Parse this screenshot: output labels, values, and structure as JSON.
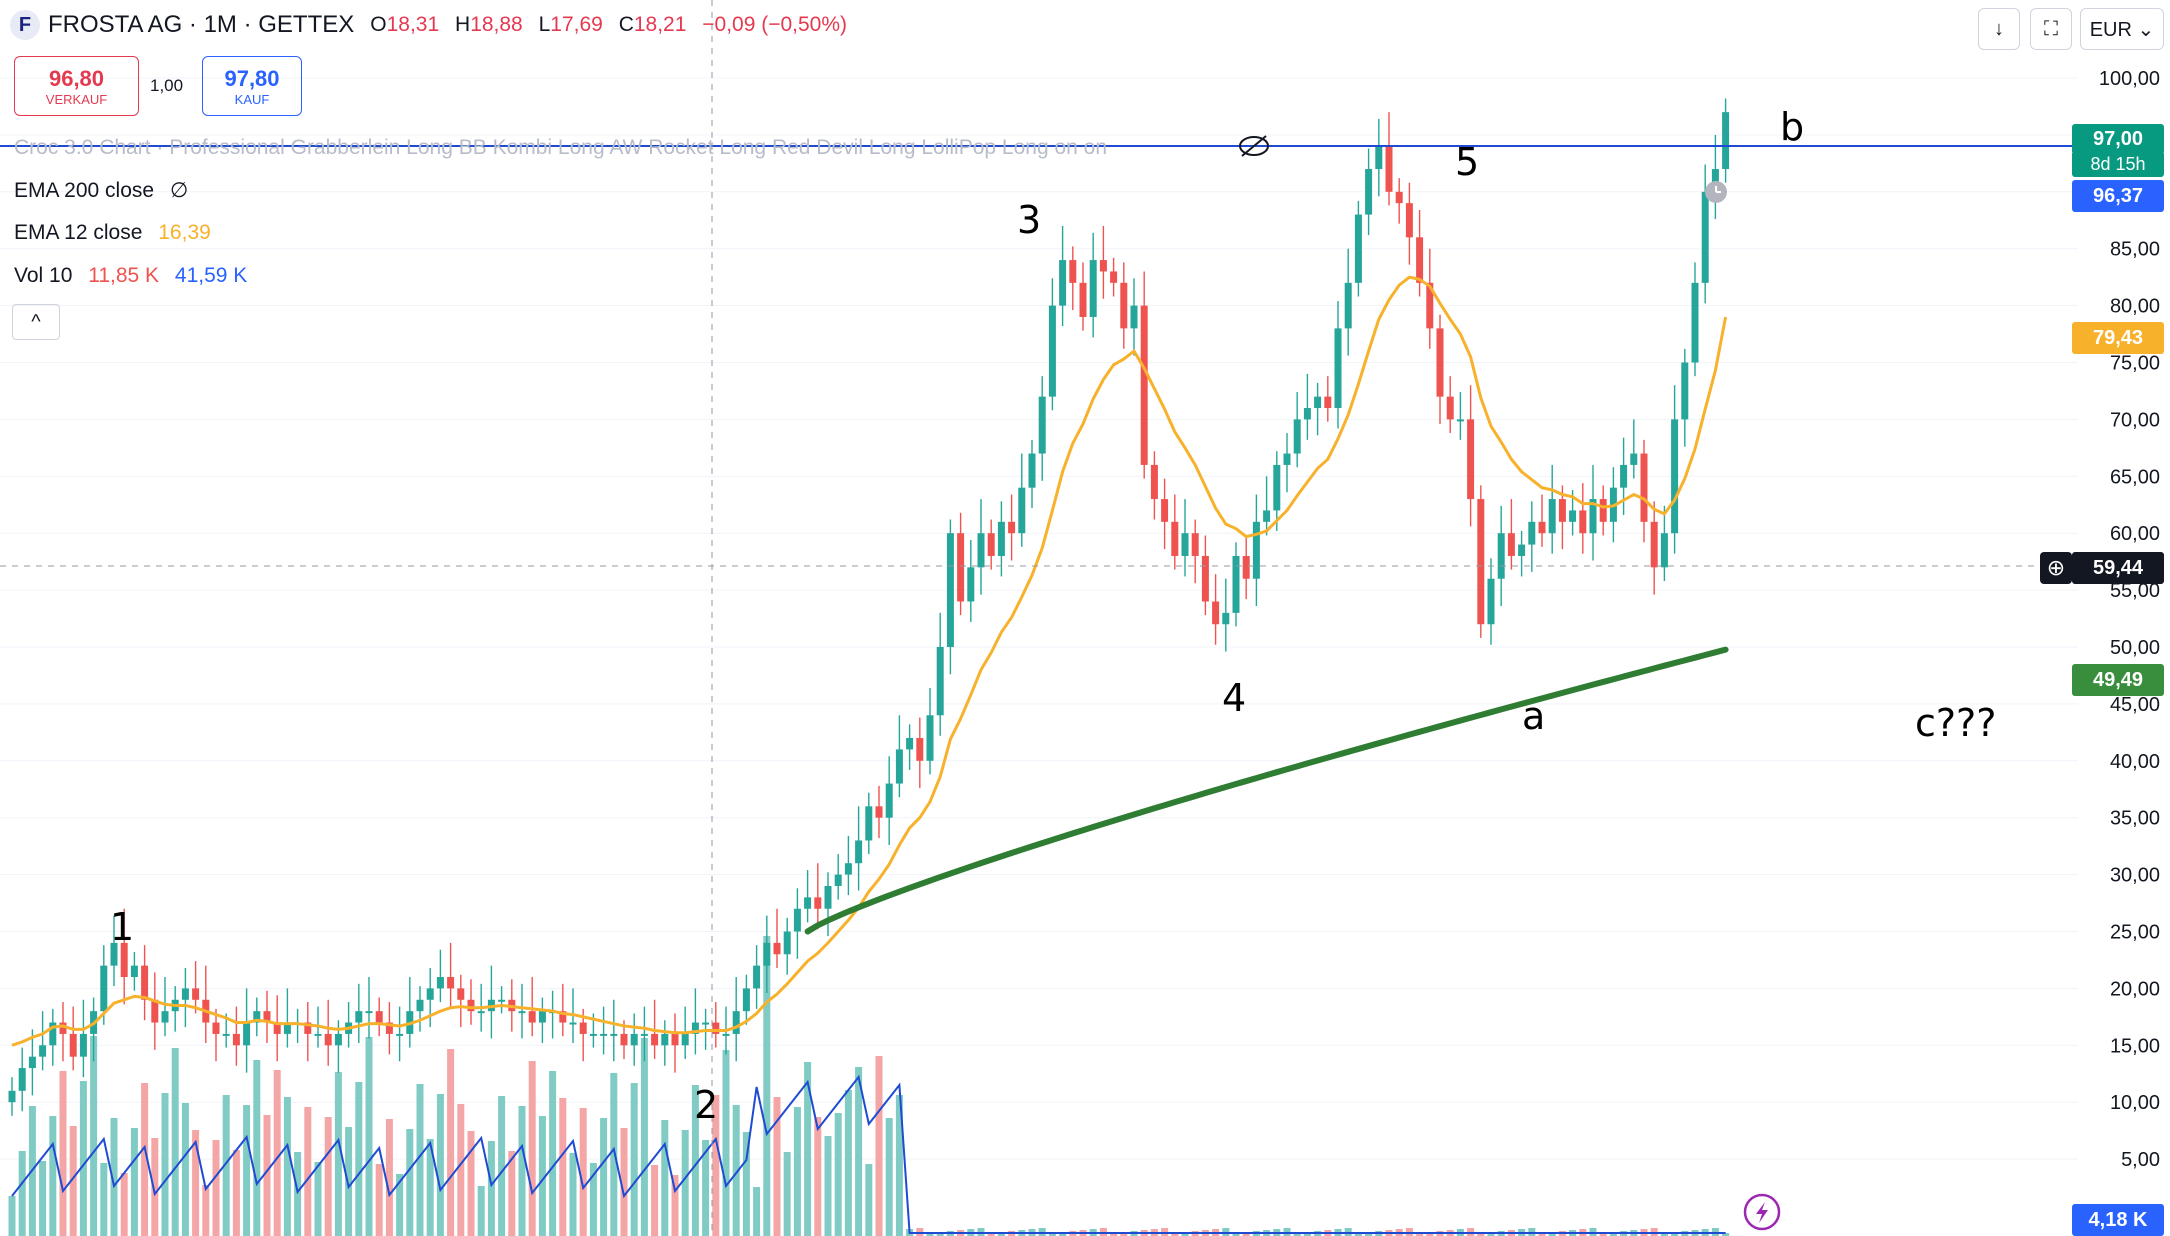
{
  "header": {
    "logo_letter": "F",
    "title": "FROSTA AG · 1M · GETTEX",
    "ohlc": {
      "o_label": "O",
      "o": "18,31",
      "h_label": "H",
      "h": "18,88",
      "l_label": "L",
      "l": "17,69",
      "c_label": "C",
      "c": "18,21",
      "change": "−0,09 (−0,50%)"
    }
  },
  "trade": {
    "sell_price": "96,80",
    "sell_label": "VERKAUF",
    "qty": "1,00",
    "buy_price": "97,80",
    "buy_label": "KAUF"
  },
  "indicators": {
    "strategy_text": "Croc 3.0 Chart · Professional Grabberlein Long BB Kombi Long AW Rocket Long Red Devil Long LolliPop Long on on",
    "ema200": {
      "label": "EMA 200 close",
      "value": "∅"
    },
    "ema12": {
      "label": "EMA 12 close",
      "value": "16,39"
    },
    "vol": {
      "label": "Vol 10",
      "v1": "11,85 K",
      "v2": "41,59 K"
    },
    "collapse": "^"
  },
  "toolbar": {
    "currency": "EUR ⌄",
    "download_icon": "↓",
    "fullscreen_icon": "⛶"
  },
  "price_labels": {
    "last": "97,00",
    "countdown": "8d 15h",
    "blue": "96,37",
    "ema12": "79,43",
    "cross": "59,44",
    "ema200": "49,49",
    "vol": "4,18 K"
  },
  "colors": {
    "up": "#26a69a",
    "down": "#ef5350",
    "ema12": "#f7b12b",
    "ema200": "#2e7d32",
    "vol_ma": "#1e4bd2",
    "hline": "#1e4bd2"
  },
  "chart_data": {
    "type": "candlestick",
    "y_axis": {
      "ticks": [
        "100,00",
        "95,00",
        "90,00",
        "85,00",
        "80,00",
        "75,00",
        "70,00",
        "65,00",
        "60,00",
        "55,00",
        "50,00",
        "45,00",
        "40,00",
        "35,00",
        "30,00",
        "25,00",
        "20,00",
        "15,00",
        "10,00",
        "5,00"
      ],
      "min": 0,
      "max": 100
    },
    "close": [
      11,
      13,
      14,
      15,
      17,
      16,
      14,
      16,
      18,
      22,
      24,
      21,
      22,
      19,
      17,
      18,
      19,
      20,
      19,
      17,
      16,
      16,
      15,
      17,
      18,
      17,
      16,
      17,
      17,
      16,
      16,
      15,
      16,
      17,
      18,
      18,
      17,
      16,
      16,
      18,
      19,
      20,
      21,
      20,
      19,
      18,
      18,
      19,
      19,
      18,
      18,
      17,
      18,
      18,
      17,
      17,
      16,
      16,
      16,
      16,
      15,
      16,
      16,
      15,
      16,
      15,
      16,
      17,
      17,
      16,
      16,
      18,
      20,
      22,
      24,
      23,
      25,
      27,
      28,
      27,
      29,
      30,
      31,
      33,
      36,
      35,
      38,
      41,
      42,
      40,
      44,
      50,
      60,
      54,
      57,
      60,
      58,
      61,
      60,
      64,
      67,
      72,
      80,
      84,
      82,
      79,
      84,
      83,
      82,
      78,
      80,
      66,
      63,
      61,
      58,
      60,
      58,
      54,
      52,
      53,
      58,
      56,
      61,
      62,
      66,
      67,
      70,
      71,
      72,
      71,
      78,
      82,
      88,
      92,
      94,
      90,
      89,
      86,
      82,
      78,
      72,
      70,
      70,
      63,
      52,
      56,
      60,
      58,
      59,
      61,
      60,
      63,
      61,
      62,
      60,
      63,
      61,
      64,
      66,
      67,
      61,
      57,
      60,
      70,
      75,
      82,
      90,
      92,
      97
    ],
    "ema12": [
      15,
      15.3,
      15.7,
      16,
      16.6,
      16.7,
      16.4,
      16.4,
      16.9,
      17.8,
      18.7,
      19,
      19.3,
      19.2,
      18.9,
      18.6,
      18.5,
      18.5,
      18.3,
      18,
      17.7,
      17.4,
      17,
      17,
      17.2,
      17.1,
      16.9,
      16.9,
      16.9,
      16.8,
      16.7,
      16.5,
      16.4,
      16.5,
      16.7,
      16.9,
      16.9,
      16.8,
      16.7,
      16.9,
      17.2,
      17.6,
      18,
      18.3,
      18.4,
      18.3,
      18.3,
      18.4,
      18.5,
      18.4,
      18.3,
      18.2,
      18.1,
      18,
      17.8,
      17.7,
      17.5,
      17.3,
      17.1,
      16.9,
      16.7,
      16.6,
      16.5,
      16.3,
      16.2,
      16.1,
      16.1,
      16.2,
      16.3,
      16.3,
      16.3,
      16.6,
      17.1,
      17.8,
      18.8,
      19.5,
      20.4,
      21.4,
      22.4,
      23.1,
      24,
      25,
      26,
      27.1,
      28.5,
      29.6,
      30.9,
      32.6,
      34.1,
      35,
      36.4,
      38.6,
      41.9,
      43.7,
      45.8,
      48,
      49.5,
      51.3,
      52.6,
      54.4,
      56.3,
      58.7,
      62,
      65.4,
      67.9,
      69.6,
      71.8,
      73.5,
      74.8,
      75.3,
      76,
      74.5,
      72.7,
      70.9,
      68.9,
      67.5,
      66,
      64.1,
      62.2,
      60.8,
      60.4,
      59.7,
      59.9,
      60.2,
      61.1,
      62,
      63.3,
      64.5,
      65.7,
      66.5,
      68.3,
      70.4,
      73.1,
      76,
      78.8,
      80.5,
      81.8,
      82.5,
      82.3,
      81.7,
      80.2,
      78.8,
      77.5,
      75.5,
      71.9,
      69.4,
      68,
      66.5,
      65.4,
      64.7,
      64,
      63.8,
      63.4,
      63.2,
      62.6,
      62.6,
      62.3,
      62.4,
      62.9,
      63.4,
      63,
      62.1,
      61.7,
      62.9,
      64.8,
      67.4,
      70.9,
      74.3,
      79
    ]
  }
}
